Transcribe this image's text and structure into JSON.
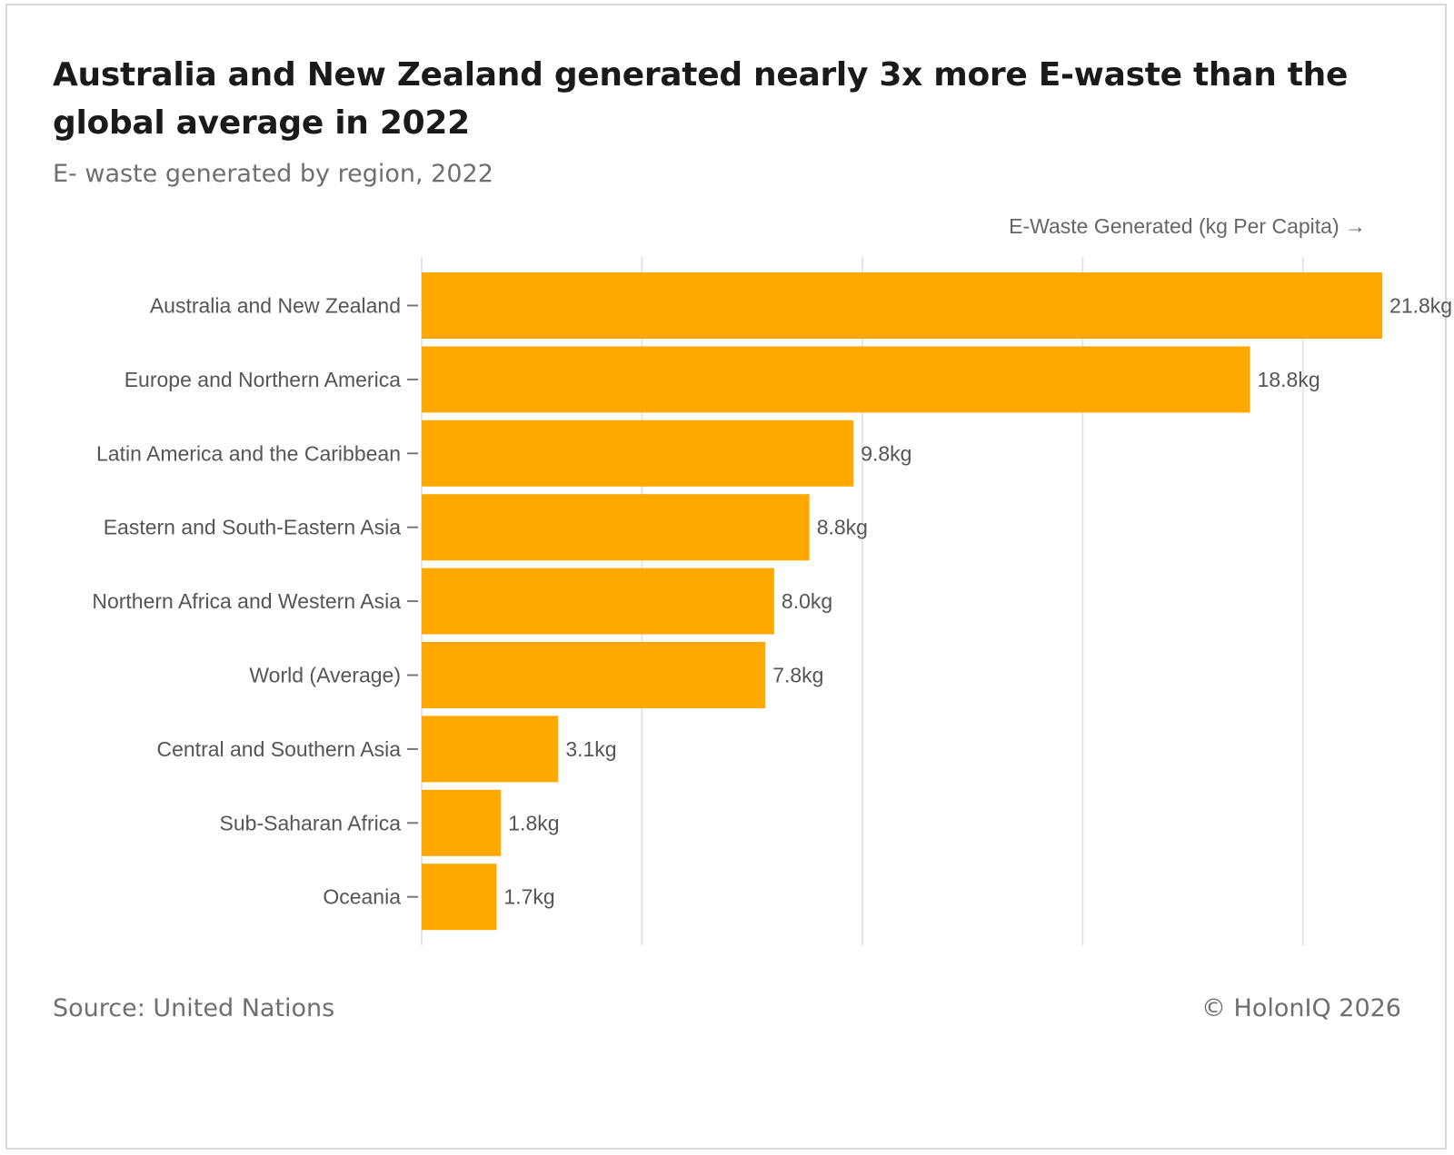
{
  "header": {
    "title": "Australia and New Zealand generated nearly 3x more E-waste than the global average in 2022",
    "subtitle": "E- waste generated by region, 2022"
  },
  "footer": {
    "source": "Source: United Nations",
    "copyright": "© HolonIQ 2026"
  },
  "colors": {
    "bar": "#FFA800",
    "grid": "#e4e4e4",
    "text": "#555555"
  },
  "chart_data": {
    "type": "bar",
    "orientation": "horizontal",
    "title": "Australia and New Zealand generated nearly 3x more E-waste than the global average in 2022",
    "subtitle": "E- waste generated by region, 2022",
    "xlabel": "E-Waste Generated (kg Per Capita) →",
    "ylabel": "",
    "xlim": [
      0,
      22.5
    ],
    "gridlines": [
      0,
      5,
      10,
      15,
      20
    ],
    "grid": true,
    "value_suffix": "kg",
    "categories": [
      "Australia and New Zealand",
      "Europe and Northern America",
      "Latin America and the Caribbean",
      "Eastern and South-Eastern Asia",
      "Northern Africa and Western Asia",
      "World (Average)",
      "Central and Southern Asia",
      "Sub-Saharan Africa",
      "Oceania"
    ],
    "values": [
      21.8,
      18.8,
      9.8,
      8.8,
      8.0,
      7.8,
      3.1,
      1.8,
      1.7
    ],
    "value_labels": [
      "21.8kg",
      "18.8kg",
      "9.8kg",
      "8.8kg",
      "8.0kg",
      "7.8kg",
      "3.1kg",
      "1.8kg",
      "1.7kg"
    ]
  }
}
